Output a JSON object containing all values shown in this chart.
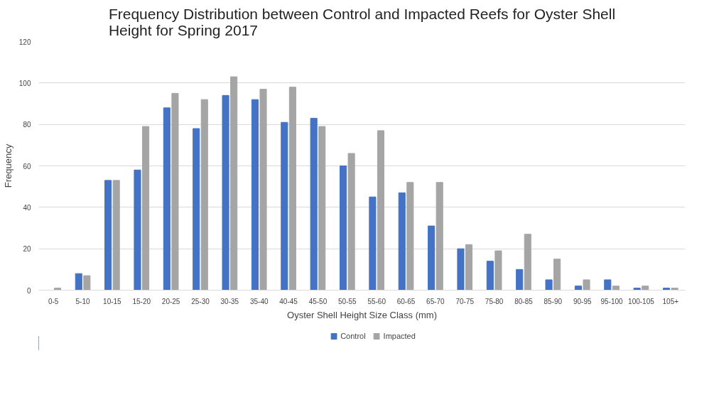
{
  "chart_data": {
    "type": "bar",
    "title": "Frequency Distribution between Control and Impacted Reefs for Oyster Shell\nHeight for Spring 2017",
    "xlabel": "Oyster Shell Height Size Class (mm)",
    "ylabel": "Frequency",
    "categories": [
      "0-5",
      "5-10",
      "10-15",
      "15-20",
      "20-25",
      "25-30",
      "30-35",
      "35-40",
      "40-45",
      "45-50",
      "50-55",
      "55-60",
      "60-65",
      "65-70",
      "70-75",
      "75-80",
      "80-85",
      "85-90",
      "90-95",
      "95-100",
      "100-105",
      "105+"
    ],
    "series": [
      {
        "name": "Control",
        "color": "#4472c4",
        "values": [
          0,
          8,
          53,
          58,
          88,
          78,
          94,
          92,
          81,
          83,
          60,
          45,
          47,
          31,
          20,
          14,
          10,
          5,
          2,
          5,
          1,
          1
        ]
      },
      {
        "name": "Impacted",
        "color": "#a5a5a5",
        "values": [
          1,
          7,
          53,
          79,
          95,
          92,
          103,
          97,
          98,
          79,
          66,
          77,
          52,
          52,
          22,
          19,
          27,
          15,
          5,
          2,
          2,
          1
        ]
      }
    ],
    "ylim": [
      0,
      120
    ],
    "yticks": [
      0,
      20,
      40,
      60,
      80,
      100,
      120
    ],
    "grid": "y",
    "legend": "bottom"
  }
}
